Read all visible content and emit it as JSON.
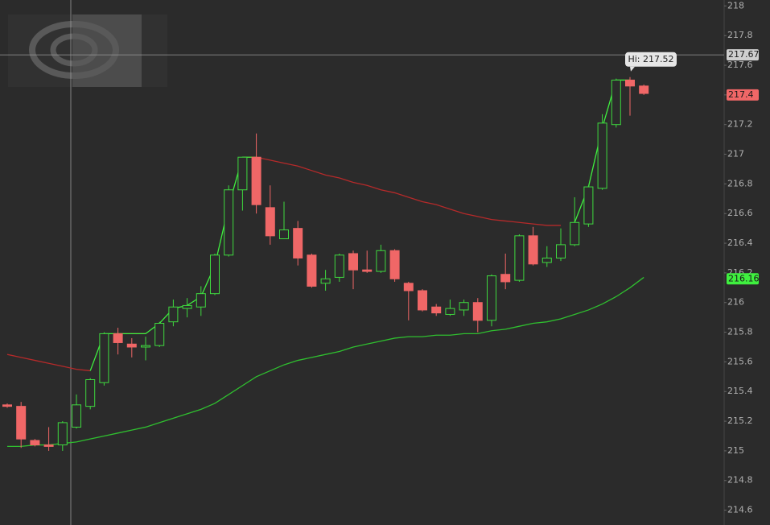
{
  "chart_data": {
    "type": "candlestick",
    "ylim": [
      214.5,
      218.04
    ],
    "yticks": [
      214.6,
      214.8,
      215,
      215.2,
      215.4,
      215.6,
      215.8,
      216,
      216.2,
      216.4,
      216.6,
      216.8,
      217,
      217.2,
      217.4,
      217.6,
      217.8,
      218
    ],
    "up_color": "#3fd93f",
    "down_color": "#f06767",
    "open": [
      215.31,
      215.3,
      215.07,
      215.04,
      215.04,
      215.16,
      215.3,
      215.46,
      215.79,
      215.72,
      215.7,
      215.71,
      215.87,
      215.96,
      215.97,
      216.06,
      216.32,
      216.76,
      216.98,
      216.64,
      216.43,
      216.5,
      216.32,
      216.13,
      216.17,
      216.33,
      216.22,
      216.21,
      216.35,
      216.13,
      216.08,
      215.97,
      215.92,
      215.95,
      216.0,
      215.88,
      216.19,
      216.15,
      216.45,
      216.27,
      216.3,
      216.39,
      216.53,
      216.77,
      217.2,
      217.5,
      217.46
    ],
    "high": [
      215.32,
      215.33,
      215.08,
      215.16,
      215.2,
      215.38,
      215.49,
      215.8,
      215.83,
      215.76,
      215.77,
      215.87,
      216.02,
      216.03,
      216.11,
      216.33,
      216.79,
      216.98,
      217.14,
      216.79,
      216.68,
      216.55,
      216.33,
      216.22,
      216.33,
      216.35,
      216.35,
      216.39,
      216.36,
      216.14,
      216.09,
      215.99,
      216.02,
      216.02,
      216.03,
      216.19,
      216.33,
      216.46,
      216.51,
      216.38,
      216.5,
      216.71,
      216.79,
      217.27,
      217.51,
      217.52,
      217.47
    ],
    "low": [
      215.29,
      215.02,
      215.03,
      215.0,
      215.0,
      215.15,
      215.28,
      215.44,
      215.65,
      215.63,
      215.61,
      215.7,
      215.84,
      215.9,
      215.91,
      216.05,
      216.31,
      216.62,
      216.6,
      216.39,
      216.43,
      216.25,
      216.1,
      216.08,
      216.14,
      216.09,
      216.2,
      216.2,
      216.14,
      215.88,
      215.94,
      215.91,
      215.91,
      215.91,
      215.8,
      215.84,
      216.09,
      216.14,
      216.25,
      216.24,
      216.28,
      216.38,
      216.51,
      216.76,
      217.18,
      217.26,
      217.4
    ],
    "close": [
      215.3,
      215.08,
      215.04,
      215.03,
      215.19,
      215.31,
      215.48,
      215.79,
      215.73,
      215.7,
      215.71,
      215.86,
      215.97,
      215.98,
      216.06,
      216.32,
      216.76,
      216.98,
      216.66,
      216.45,
      216.49,
      216.3,
      216.11,
      216.16,
      216.32,
      216.22,
      216.21,
      216.35,
      216.16,
      216.08,
      215.95,
      215.93,
      215.96,
      216.0,
      215.88,
      216.18,
      216.14,
      216.45,
      216.26,
      216.3,
      216.39,
      216.54,
      216.78,
      217.21,
      217.5,
      217.46,
      217.41
    ],
    "lines": [
      {
        "color": "#b52a2a",
        "values": [
          215.65,
          215.63,
          215.61,
          215.59,
          215.57,
          215.55,
          215.54,
          null,
          215.79,
          215.79,
          215.79,
          null,
          null,
          null,
          null,
          null,
          null,
          216.98,
          216.98,
          216.96,
          216.94,
          216.92,
          216.89,
          216.86,
          216.84,
          216.81,
          216.79,
          216.76,
          216.74,
          216.71,
          216.68,
          216.66,
          216.63,
          216.6,
          216.58,
          216.56,
          216.55,
          216.54,
          216.53,
          216.52,
          216.52,
          null,
          null,
          null,
          null,
          null,
          null
        ]
      },
      {
        "color": "#2fbf2f",
        "values": [
          215.03,
          215.03,
          215.04,
          215.04,
          215.05,
          215.06,
          215.08,
          215.1,
          215.12,
          215.14,
          215.16,
          215.19,
          215.22,
          215.25,
          215.28,
          215.32,
          215.38,
          215.44,
          215.5,
          215.54,
          215.58,
          215.61,
          215.63,
          215.65,
          215.67,
          215.7,
          215.72,
          215.74,
          215.76,
          215.77,
          215.77,
          215.78,
          215.78,
          215.79,
          215.79,
          215.81,
          215.82,
          215.84,
          215.86,
          215.87,
          215.89,
          215.92,
          215.95,
          215.99,
          216.04,
          216.1,
          216.17
        ]
      },
      {
        "color": "#3ff03f",
        "values": [
          null,
          null,
          null,
          null,
          null,
          null,
          215.54,
          215.79,
          215.79,
          215.79,
          215.79,
          215.86,
          215.96,
          215.98,
          216.04,
          216.25,
          216.65,
          216.98,
          216.98,
          null,
          null,
          null,
          null,
          null,
          null,
          null,
          null,
          null,
          null,
          null,
          null,
          null,
          null,
          null,
          null,
          null,
          null,
          null,
          null,
          null,
          null,
          216.54,
          216.78,
          217.18,
          217.5,
          217.5,
          null
        ]
      }
    ],
    "price_labels": [
      {
        "value": 217.67,
        "bg": "#cfcfcf"
      },
      {
        "value": 217.4,
        "bg": "#f06767"
      },
      {
        "value": 216.16,
        "bg": "#3ff03f"
      }
    ],
    "high_tooltip": "Hi: 217.52"
  }
}
